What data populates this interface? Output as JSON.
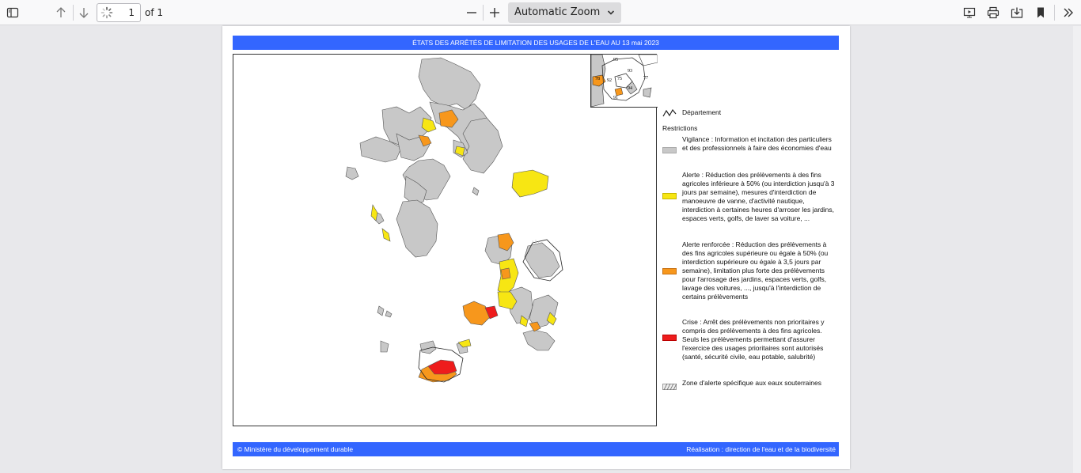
{
  "toolbar": {
    "page_number": "1",
    "page_of": "of 1",
    "zoom_value": "Automatic Zoom",
    "icons": [
      "sidebar-toggle-icon",
      "arrow-up-icon",
      "arrow-down-icon",
      "loading-spinner-icon",
      "zoom-out-icon",
      "zoom-in-icon",
      "chevron-down-icon",
      "presentation-icon",
      "print-icon",
      "save-icon",
      "bookmark-icon",
      "double-chevron-right-icon"
    ]
  },
  "document": {
    "title": "ÉTATS DES ARRÊTÉS DE LIMITATION DES USAGES DE L'EAU AU 13 mai 2023",
    "inset_labels": [
      "95",
      "93",
      "75",
      "92",
      "94",
      "91",
      "77",
      "78"
    ],
    "legend": {
      "department": "Département",
      "restrictions_heading": "Restrictions",
      "items": [
        {
          "color": "#c8c8c8",
          "text": "Vigilance : Information et incitation des particuliers et des professionnels à faire des économies d'eau"
        },
        {
          "color": "#f7e613",
          "text": "Alerte : Réduction des prélèvements à des fins agricoles inférieure à 50% (ou interdiction jusqu'à 3 jours par semaine), mesures d'interdiction de manoeuvre de vanne, d'activité nautique, interdiction à certaines heures d'arroser les jardins, espaces verts, golfs, de laver sa voiture, ..."
        },
        {
          "color": "#f7971c",
          "text": "Alerte renforcée : Réduction des prélèvements à des fins agricoles supérieure ou égale à 50% (ou interdiction supérieure ou égale à 3,5 jours par semaine), limitation plus forte des prélèvements pour l'arrosage des jardins, espaces verts, golfs, lavage des voitures, ..., jusqu'à l'interdiction de certains prélèvements"
        },
        {
          "color": "#ee1c1c",
          "text": "Crise : Arrêt des prélèvements non prioritaires y compris des prélèvements à des fins agricoles. Seuls les prélèvements permettant d'assurer l'exercice des usages prioritaires sont autorisés (santé, sécurité civile, eau potable, salubrité)"
        },
        {
          "color": "hatch",
          "text": "Zone d'alerte spécifique aux eaux souterraines"
        }
      ]
    },
    "footer_left": "© Ministère du développement durable",
    "footer_right": "Réalisation : direction de l'eau et de la biodiversité"
  }
}
